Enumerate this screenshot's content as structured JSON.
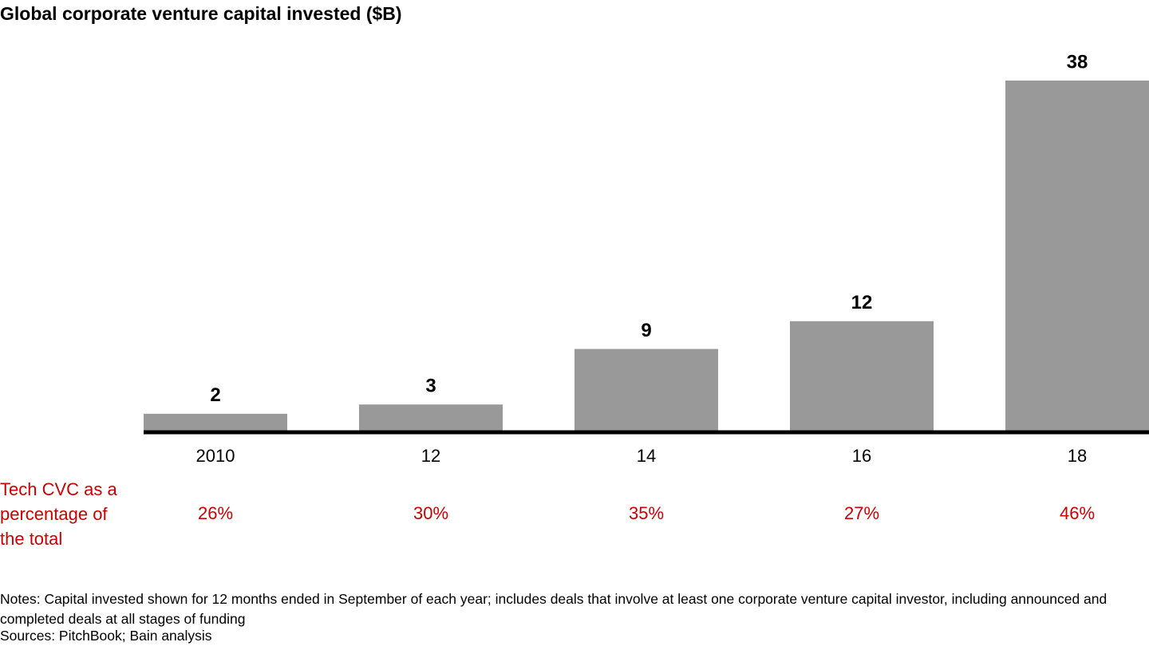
{
  "chart_data": {
    "type": "bar",
    "title": "Global corporate venture capital invested ($B)",
    "categories": [
      "2010",
      "12",
      "14",
      "16",
      "18"
    ],
    "values": [
      2,
      3,
      9,
      12,
      38
    ],
    "color": "#999999",
    "tech_share": {
      "label": "Tech CVC as a percentage of the total",
      "values": [
        26,
        30,
        35,
        27,
        46
      ],
      "value_labels": [
        "26%",
        "30%",
        "35%",
        "27%",
        "46%"
      ],
      "color": "#cc0000"
    },
    "notes": "Notes: Capital invested shown for 12 months ended in September of each year; includes deals that involve at least one corporate venture capital investor, including announced and completed deals at all stages of funding",
    "sources": "Sources: PitchBook; Bain analysis"
  }
}
